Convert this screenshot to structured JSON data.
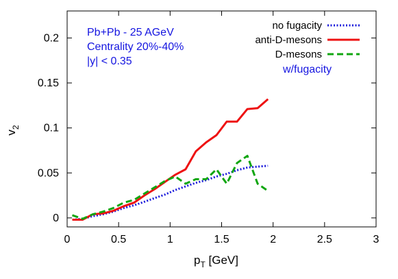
{
  "chart_data": {
    "type": "line",
    "xlabel_main": "p",
    "xlabel_sub": "T",
    "xlabel_rest": " [GeV]",
    "ylabel_main": "v",
    "ylabel_sub": "2",
    "xlim": [
      0,
      3
    ],
    "ylim": [
      -0.01,
      0.23
    ],
    "x_ticks": [
      0,
      0.5,
      1,
      1.5,
      2,
      2.5,
      3
    ],
    "x_tick_labels": [
      "0",
      "0.5",
      "1",
      "1.5",
      "2",
      "2.5",
      "3"
    ],
    "y_ticks": [
      0,
      0.05,
      0.1,
      0.15,
      0.2
    ],
    "y_tick_labels": [
      "0",
      "0.05",
      "0.1",
      "0.15",
      "0.2"
    ],
    "grid": false,
    "legend_position": "top-right",
    "annotations": {
      "system": "Pb+Pb - 25 AGeV",
      "centrality": "Centrality 20%-40%",
      "rapidity": "|y| < 0.35",
      "fugacity_note": "w/fugacity",
      "color": "#1515e0"
    },
    "series": [
      {
        "name": "no fugacity",
        "color": "#1a1adb",
        "style": "dotted",
        "x": [
          0.05,
          0.15,
          0.25,
          0.35,
          0.45,
          0.55,
          0.65,
          0.75,
          0.85,
          0.95,
          1.05,
          1.15,
          1.25,
          1.35,
          1.45,
          1.55,
          1.65,
          1.75,
          1.85,
          1.95
        ],
        "y": [
          -0.002,
          -0.001,
          0.002,
          0.004,
          0.007,
          0.011,
          0.014,
          0.018,
          0.022,
          0.026,
          0.031,
          0.035,
          0.039,
          0.042,
          0.046,
          0.049,
          0.053,
          0.056,
          0.057,
          0.058
        ]
      },
      {
        "name": "anti-D-mesons",
        "color": "#ee1111",
        "style": "solid",
        "x": [
          0.05,
          0.15,
          0.25,
          0.35,
          0.45,
          0.55,
          0.65,
          0.75,
          0.85,
          0.95,
          1.05,
          1.15,
          1.25,
          1.35,
          1.45,
          1.55,
          1.65,
          1.75,
          1.85,
          1.95
        ],
        "y": [
          -0.002,
          -0.002,
          0.004,
          0.005,
          0.008,
          0.013,
          0.017,
          0.025,
          0.032,
          0.04,
          0.048,
          0.054,
          0.074,
          0.084,
          0.092,
          0.107,
          0.107,
          0.121,
          0.122,
          0.132
        ]
      },
      {
        "name": "D-mesons",
        "color": "#11a611",
        "style": "dashed",
        "x": [
          0.05,
          0.15,
          0.25,
          0.35,
          0.45,
          0.55,
          0.65,
          0.75,
          0.85,
          0.95,
          1.05,
          1.15,
          1.25,
          1.35,
          1.45,
          1.55,
          1.65,
          1.75,
          1.85,
          1.95
        ],
        "y": [
          0.003,
          -0.001,
          0.004,
          0.007,
          0.011,
          0.017,
          0.02,
          0.027,
          0.034,
          0.041,
          0.046,
          0.038,
          0.043,
          0.043,
          0.054,
          0.038,
          0.061,
          0.069,
          0.038,
          0.03
        ]
      }
    ]
  }
}
